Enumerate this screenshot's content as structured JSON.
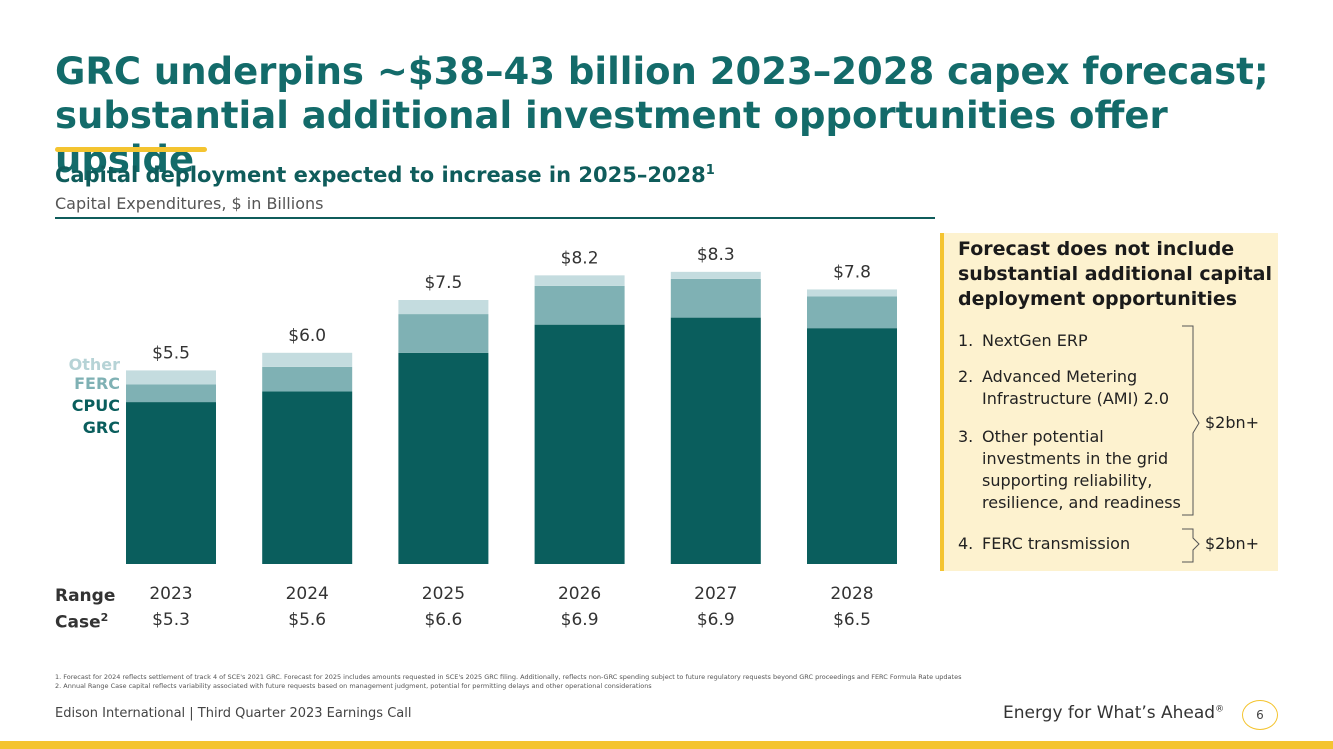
{
  "title": {
    "line1": "GRC underpins ~$38–43 billion 2023–2028 capex forecast;",
    "line2": "substantial additional investment opportunities offer upside"
  },
  "subtitle": "Capital deployment expected to increase in 2025–2028",
  "subtitle_sup": "1",
  "units": "Capital Expenditures, $ in Billions",
  "legend": {
    "other": "Other",
    "ferc": "FERC",
    "cpuc": "CPUC",
    "grc": "GRC"
  },
  "range_case": {
    "line1": "Range",
    "line2": "Case",
    "sup": "2"
  },
  "chart_data": {
    "type": "bar",
    "stacked": true,
    "categories": [
      "2023",
      "2024",
      "2025",
      "2026",
      "2027",
      "2028"
    ],
    "series": [
      {
        "name": "CPUC GRC",
        "color": "#0a5e5d",
        "values": [
          4.6,
          4.9,
          6.0,
          6.8,
          7.0,
          6.7
        ]
      },
      {
        "name": "FERC",
        "color": "#7fb1b4",
        "values": [
          0.5,
          0.7,
          1.1,
          1.1,
          1.1,
          0.9
        ]
      },
      {
        "name": "Other",
        "color": "#c4dcdf",
        "values": [
          0.4,
          0.4,
          0.4,
          0.3,
          0.2,
          0.2
        ]
      }
    ],
    "totals": [
      "$5.5",
      "$6.0",
      "$7.5",
      "$8.2",
      "$8.3",
      "$7.8"
    ],
    "range_case": [
      "$5.3",
      "$5.6",
      "$6.6",
      "$6.9",
      "$6.9",
      "$6.5"
    ],
    "ylim": [
      0,
      8.5
    ],
    "grid": false
  },
  "panel": {
    "title": "Forecast does not include substantial additional capital deployment opportunities",
    "items": [
      {
        "num": "1.",
        "text": "NextGen ERP"
      },
      {
        "num": "2.",
        "text": "Advanced Metering Infrastructure (AMI) 2.0"
      },
      {
        "num": "3.",
        "text": "Other potential investments in the grid supporting reliability, resilience, and readiness"
      },
      {
        "num": "4.",
        "text": "FERC transmission"
      }
    ],
    "amount_1_3": "$2bn+",
    "amount_4": "$2bn+",
    "accent_color": "#f4c430"
  },
  "footnotes": {
    "note1": "1.  Forecast for 2024 reflects settlement of track 4 of SCE's 2021 GRC. Forecast for 2025 includes amounts requested in SCE's 2025 GRC filing. Additionally, reflects non-GRC spending subject to future regulatory requests beyond GRC proceedings and FERC Formula Rate updates",
    "note2": "2.  Annual Range Case capital reflects variability associated with future requests based on management judgment, potential for permitting delays and other operational considerations"
  },
  "footer": {
    "left": "Edison International |  Third Quarter 2023 Earnings Call",
    "tagline": "Energy for What’s Ahead",
    "tagline_mark": "®",
    "page": "6"
  },
  "colors": {
    "brand_teal": "#136b6a",
    "accent_yellow": "#f4c430"
  }
}
